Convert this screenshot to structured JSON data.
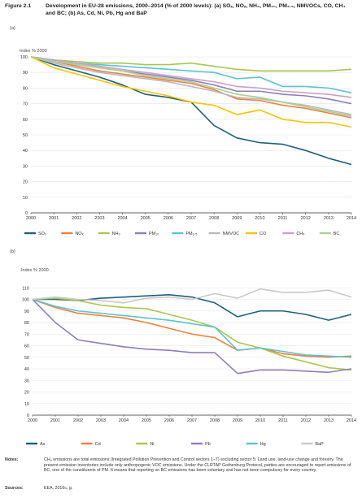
{
  "header": {
    "figure_label": "Figure 2.1",
    "title": "Development in EU-28 emissions, 2000–2014 (% of 2000 levels): (a) SOₓ, NOₓ, NH₃, PM₁₀, PM₂.₅, NMVOCs, CO, CH₄ and BC; (b) As, Cd, Ni, Pb, Hg and BaP"
  },
  "notes": {
    "label": "Notes:",
    "text": "CH₄ emissions are total emissions (Integrated Pollution Prevention and Control sectors 1–7) excluding sector 5: Land use, land-use change and forestry. The present emission inventories include only anthropogenic VOC emissions. Under the CLRTAP Gothenburg Protocol, parties are encouraged to report emissions of BC, one of the constituents of PM. It means that reporting on BC emissions has been voluntary and has not been compulsory for every country."
  },
  "sources": {
    "label": "Sources:",
    "text": "EEA, 2016c, g."
  },
  "chart_data": [
    {
      "type": "line",
      "panel_label": "(a)",
      "title": "",
      "xlabel": "",
      "ylabel": "Index % 2000",
      "ylim": [
        0,
        100
      ],
      "yticks": [
        0,
        10,
        20,
        30,
        40,
        50,
        60,
        70,
        80,
        90,
        100
      ],
      "grid": true,
      "legend_position": "bottom",
      "x": [
        "2000",
        "2001",
        "2002",
        "2003",
        "2004",
        "2005",
        "2006",
        "2007",
        "2008",
        "2009",
        "2010",
        "2011",
        "2012",
        "2013",
        "2014"
      ],
      "series": [
        {
          "name": "SO₂",
          "color": "#1f5f7a",
          "values": [
            100,
            95,
            91,
            87,
            82,
            76,
            74,
            71,
            56,
            48,
            45,
            44,
            40,
            35,
            31
          ]
        },
        {
          "name": "NOₓ",
          "color": "#f07f3c",
          "values": [
            100,
            97,
            94,
            91,
            89,
            87,
            85,
            83,
            79,
            73,
            72,
            69,
            67,
            64,
            61
          ]
        },
        {
          "name": "NH₃",
          "color": "#a8c64e",
          "values": [
            100,
            98,
            97,
            96,
            96,
            95,
            95,
            96,
            94,
            92,
            91,
            91,
            91,
            91,
            92
          ]
        },
        {
          "name": "PM₁₀",
          "color": "#8c7fb8",
          "values": [
            100,
            97,
            95,
            93,
            91,
            89,
            87,
            85,
            82,
            78,
            78,
            76,
            75,
            73,
            70
          ]
        },
        {
          "name": "PM₂.₅",
          "color": "#5bc3d1",
          "values": [
            100,
            98,
            96,
            95,
            94,
            93,
            92,
            91,
            90,
            86,
            87,
            81,
            81,
            80,
            77
          ]
        },
        {
          "name": "NMVOC",
          "color": "#b8b8b8",
          "values": [
            100,
            96,
            93,
            90,
            88,
            86,
            84,
            81,
            78,
            74,
            73,
            71,
            69,
            66,
            63
          ]
        },
        {
          "name": "CO",
          "color": "#f6c500",
          "values": [
            100,
            93,
            89,
            85,
            81,
            78,
            75,
            71,
            69,
            63,
            66,
            60,
            58,
            58,
            55
          ]
        },
        {
          "name": "CH₄",
          "color": "#c9a0c6",
          "values": [
            100,
            98,
            96,
            94,
            92,
            90,
            88,
            86,
            84,
            81,
            80,
            78,
            77,
            76,
            74
          ]
        },
        {
          "name": "BC",
          "color": "#a9d08e",
          "values": [
            100,
            97,
            95,
            93,
            91,
            88,
            86,
            84,
            80,
            76,
            74,
            71,
            68,
            65,
            62
          ]
        }
      ]
    },
    {
      "type": "line",
      "panel_label": "(b)",
      "title": "",
      "xlabel": "",
      "ylabel": "Index % 2000",
      "ylim": [
        0,
        120
      ],
      "yticks": [
        0,
        10,
        20,
        30,
        40,
        50,
        60,
        70,
        80,
        90,
        100,
        110
      ],
      "grid": true,
      "legend_position": "bottom",
      "x": [
        "2000",
        "2001",
        "2002",
        "2003",
        "2004",
        "2005",
        "2006",
        "2007",
        "2008",
        "2009",
        "2010",
        "2011",
        "2012",
        "2013",
        "2014"
      ],
      "series": [
        {
          "name": "As",
          "color": "#1f5f7a",
          "values": [
            100,
            100,
            99,
            101,
            102,
            103,
            104,
            102,
            97,
            85,
            90,
            90,
            87,
            82,
            87
          ]
        },
        {
          "name": "Cd",
          "color": "#f07f3c",
          "values": [
            100,
            93,
            88,
            86,
            84,
            80,
            75,
            70,
            67,
            56,
            58,
            53,
            51,
            50,
            51
          ]
        },
        {
          "name": "Ni",
          "color": "#a8c64e",
          "values": [
            100,
            101,
            99,
            95,
            93,
            92,
            87,
            82,
            76,
            63,
            58,
            51,
            46,
            41,
            39
          ]
        },
        {
          "name": "Pb",
          "color": "#8c7fb8",
          "values": [
            100,
            80,
            65,
            62,
            59,
            57,
            56,
            54,
            54,
            36,
            39,
            39,
            38,
            37,
            40
          ]
        },
        {
          "name": "Hg",
          "color": "#5bc3d1",
          "values": [
            100,
            94,
            90,
            88,
            86,
            84,
            82,
            79,
            76,
            56,
            58,
            55,
            52,
            51,
            50
          ]
        },
        {
          "name": "BaP",
          "color": "#c8c8c8",
          "values": [
            100,
            102,
            100,
            99,
            97,
            101,
            102,
            100,
            105,
            101,
            109,
            106,
            106,
            108,
            102
          ]
        }
      ]
    }
  ]
}
